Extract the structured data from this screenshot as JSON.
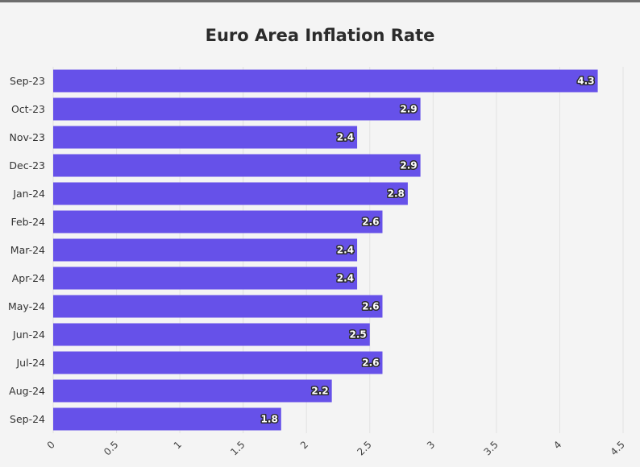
{
  "chart_data": {
    "type": "bar",
    "orientation": "horizontal",
    "title": "Euro Area Inflation Rate",
    "categories": [
      "Sep-23",
      "Oct-23",
      "Nov-23",
      "Dec-23",
      "Jan-24",
      "Feb-24",
      "Mar-24",
      "Apr-24",
      "May-24",
      "Jun-24",
      "Jul-24",
      "Aug-24",
      "Sep-24"
    ],
    "values": [
      4.3,
      2.9,
      2.4,
      2.9,
      2.8,
      2.6,
      2.4,
      2.4,
      2.6,
      2.5,
      2.6,
      2.2,
      1.8
    ],
    "value_labels": [
      "4.3",
      "2.9",
      "2.4",
      "2.9",
      "2.8",
      "2.6",
      "2.4",
      "2.4",
      "2.6",
      "2.5",
      "2.6",
      "2.2",
      "1.8"
    ],
    "xlim": [
      0,
      4.5
    ],
    "xticks": [
      0,
      0.5,
      1,
      1.5,
      2,
      2.5,
      3,
      3.5,
      4,
      4.5
    ],
    "xtick_labels": [
      "0",
      "0.5",
      "1",
      "1.5",
      "2",
      "2.5",
      "3",
      "3.5",
      "4",
      "4.5"
    ],
    "xlabel": "",
    "ylabel": "",
    "grid": true,
    "legend": false,
    "colors": {
      "bar": "#6651e9",
      "background": "#f4f4f4",
      "grid": "#e2e2e2"
    }
  }
}
